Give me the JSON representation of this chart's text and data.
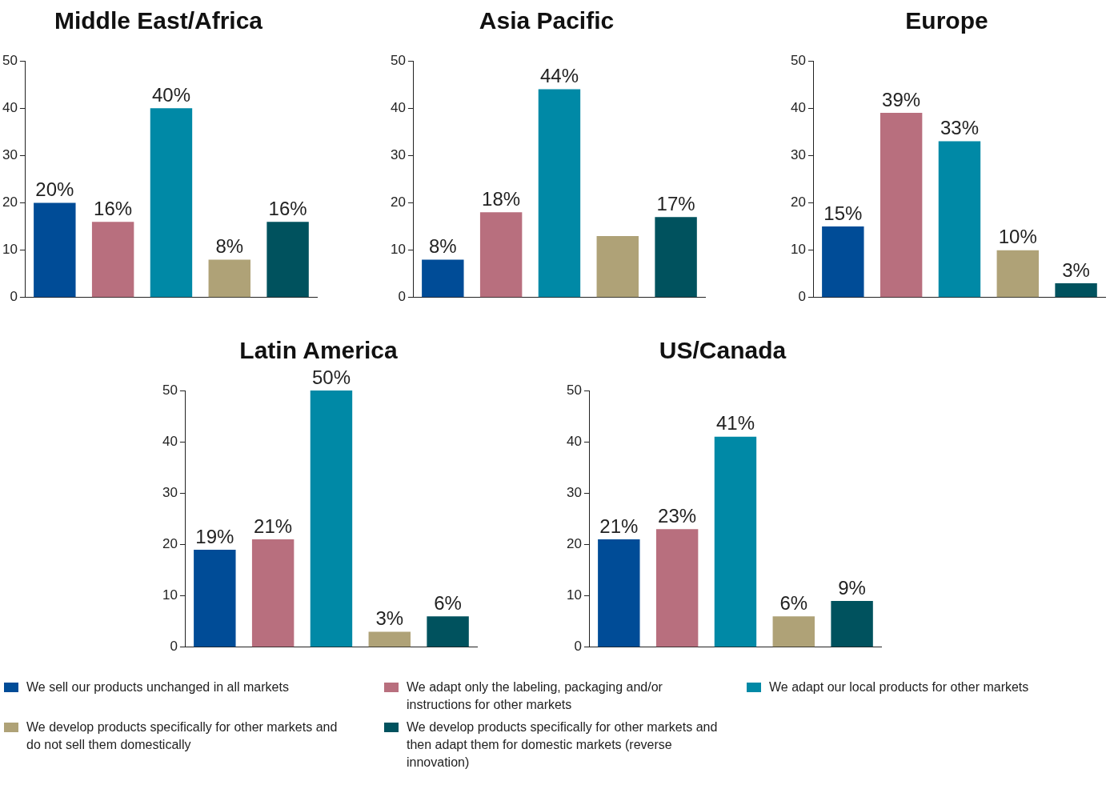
{
  "chart_data": [
    {
      "type": "bar",
      "title": "Middle East/Africa",
      "categories": [
        null
      ],
      "ylim": [
        0,
        50
      ],
      "yticks": [
        0,
        10,
        20,
        30,
        40,
        50
      ],
      "grid": false,
      "legend": "bottom",
      "series": [
        {
          "name": "We sell our products unchanged in all markets",
          "color": "#004c97",
          "values": [
            20
          ],
          "value_labels": [
            "20%"
          ]
        },
        {
          "name": "We adapt only the labeling, packaging and/or instructions for other markets",
          "color": "#b86f7e",
          "values": [
            16
          ],
          "value_labels": [
            "16%"
          ]
        },
        {
          "name": "We adapt our local products for other markets",
          "color": "#0089a6",
          "values": [
            40
          ],
          "value_labels": [
            "40%"
          ]
        },
        {
          "name": "We develop products specifically for other markets and do not sell them domestically",
          "color": "#afa277",
          "values": [
            8
          ],
          "value_labels": [
            "8%"
          ]
        },
        {
          "name": "We develop products specifically for other markets and then adapt them for domestic markets (reverse innovation)",
          "color": "#00525e",
          "values": [
            16
          ],
          "value_labels": [
            "16%"
          ]
        }
      ]
    },
    {
      "type": "bar",
      "title": "Asia Pacific",
      "categories": [
        null
      ],
      "ylim": [
        0,
        50
      ],
      "yticks": [
        0,
        10,
        20,
        30,
        40,
        50
      ],
      "grid": false,
      "series": [
        {
          "color": "#004c97",
          "values": [
            8
          ],
          "value_labels": [
            "8%"
          ]
        },
        {
          "color": "#b86f7e",
          "values": [
            18
          ],
          "value_labels": [
            "18%"
          ]
        },
        {
          "color": "#0089a6",
          "values": [
            44
          ],
          "value_labels": [
            "44%"
          ]
        },
        {
          "color": "#afa277",
          "values": [
            13
          ],
          "value_labels": [
            null
          ]
        },
        {
          "color": "#00525e",
          "values": [
            17
          ],
          "value_labels": [
            "17%"
          ]
        }
      ]
    },
    {
      "type": "bar",
      "title": "Europe",
      "categories": [
        null
      ],
      "ylim": [
        0,
        50
      ],
      "yticks": [
        0,
        10,
        20,
        30,
        40,
        50
      ],
      "grid": false,
      "series": [
        {
          "color": "#004c97",
          "values": [
            15
          ],
          "value_labels": [
            "15%"
          ]
        },
        {
          "color": "#b86f7e",
          "values": [
            39
          ],
          "value_labels": [
            "39%"
          ]
        },
        {
          "color": "#0089a6",
          "values": [
            33
          ],
          "value_labels": [
            "33%"
          ]
        },
        {
          "color": "#afa277",
          "values": [
            10
          ],
          "value_labels": [
            "10%"
          ]
        },
        {
          "color": "#00525e",
          "values": [
            3
          ],
          "value_labels": [
            "3%"
          ]
        }
      ]
    },
    {
      "type": "bar",
      "title": "Latin America",
      "categories": [
        null
      ],
      "ylim": [
        0,
        50
      ],
      "yticks": [
        0,
        10,
        20,
        30,
        40,
        50
      ],
      "grid": false,
      "series": [
        {
          "color": "#004c97",
          "values": [
            19
          ],
          "value_labels": [
            "19%"
          ]
        },
        {
          "color": "#b86f7e",
          "values": [
            21
          ],
          "value_labels": [
            "21%"
          ]
        },
        {
          "color": "#0089a6",
          "values": [
            50
          ],
          "value_labels": [
            "50%"
          ]
        },
        {
          "color": "#afa277",
          "values": [
            3
          ],
          "value_labels": [
            "3%"
          ]
        },
        {
          "color": "#00525e",
          "values": [
            6
          ],
          "value_labels": [
            "6%"
          ]
        }
      ]
    },
    {
      "type": "bar",
      "title": "US/Canada",
      "categories": [
        null
      ],
      "ylim": [
        0,
        50
      ],
      "yticks": [
        0,
        10,
        20,
        30,
        40,
        50
      ],
      "grid": false,
      "series": [
        {
          "color": "#004c97",
          "values": [
            21
          ],
          "value_labels": [
            "21%"
          ]
        },
        {
          "color": "#b86f7e",
          "values": [
            23
          ],
          "value_labels": [
            "23%"
          ]
        },
        {
          "color": "#0089a6",
          "values": [
            41
          ],
          "value_labels": [
            "41%"
          ]
        },
        {
          "color": "#afa277",
          "values": [
            6
          ],
          "value_labels": [
            "6%"
          ]
        },
        {
          "color": "#00525e",
          "values": [
            9
          ],
          "value_labels": [
            "9%"
          ]
        }
      ]
    }
  ]
}
